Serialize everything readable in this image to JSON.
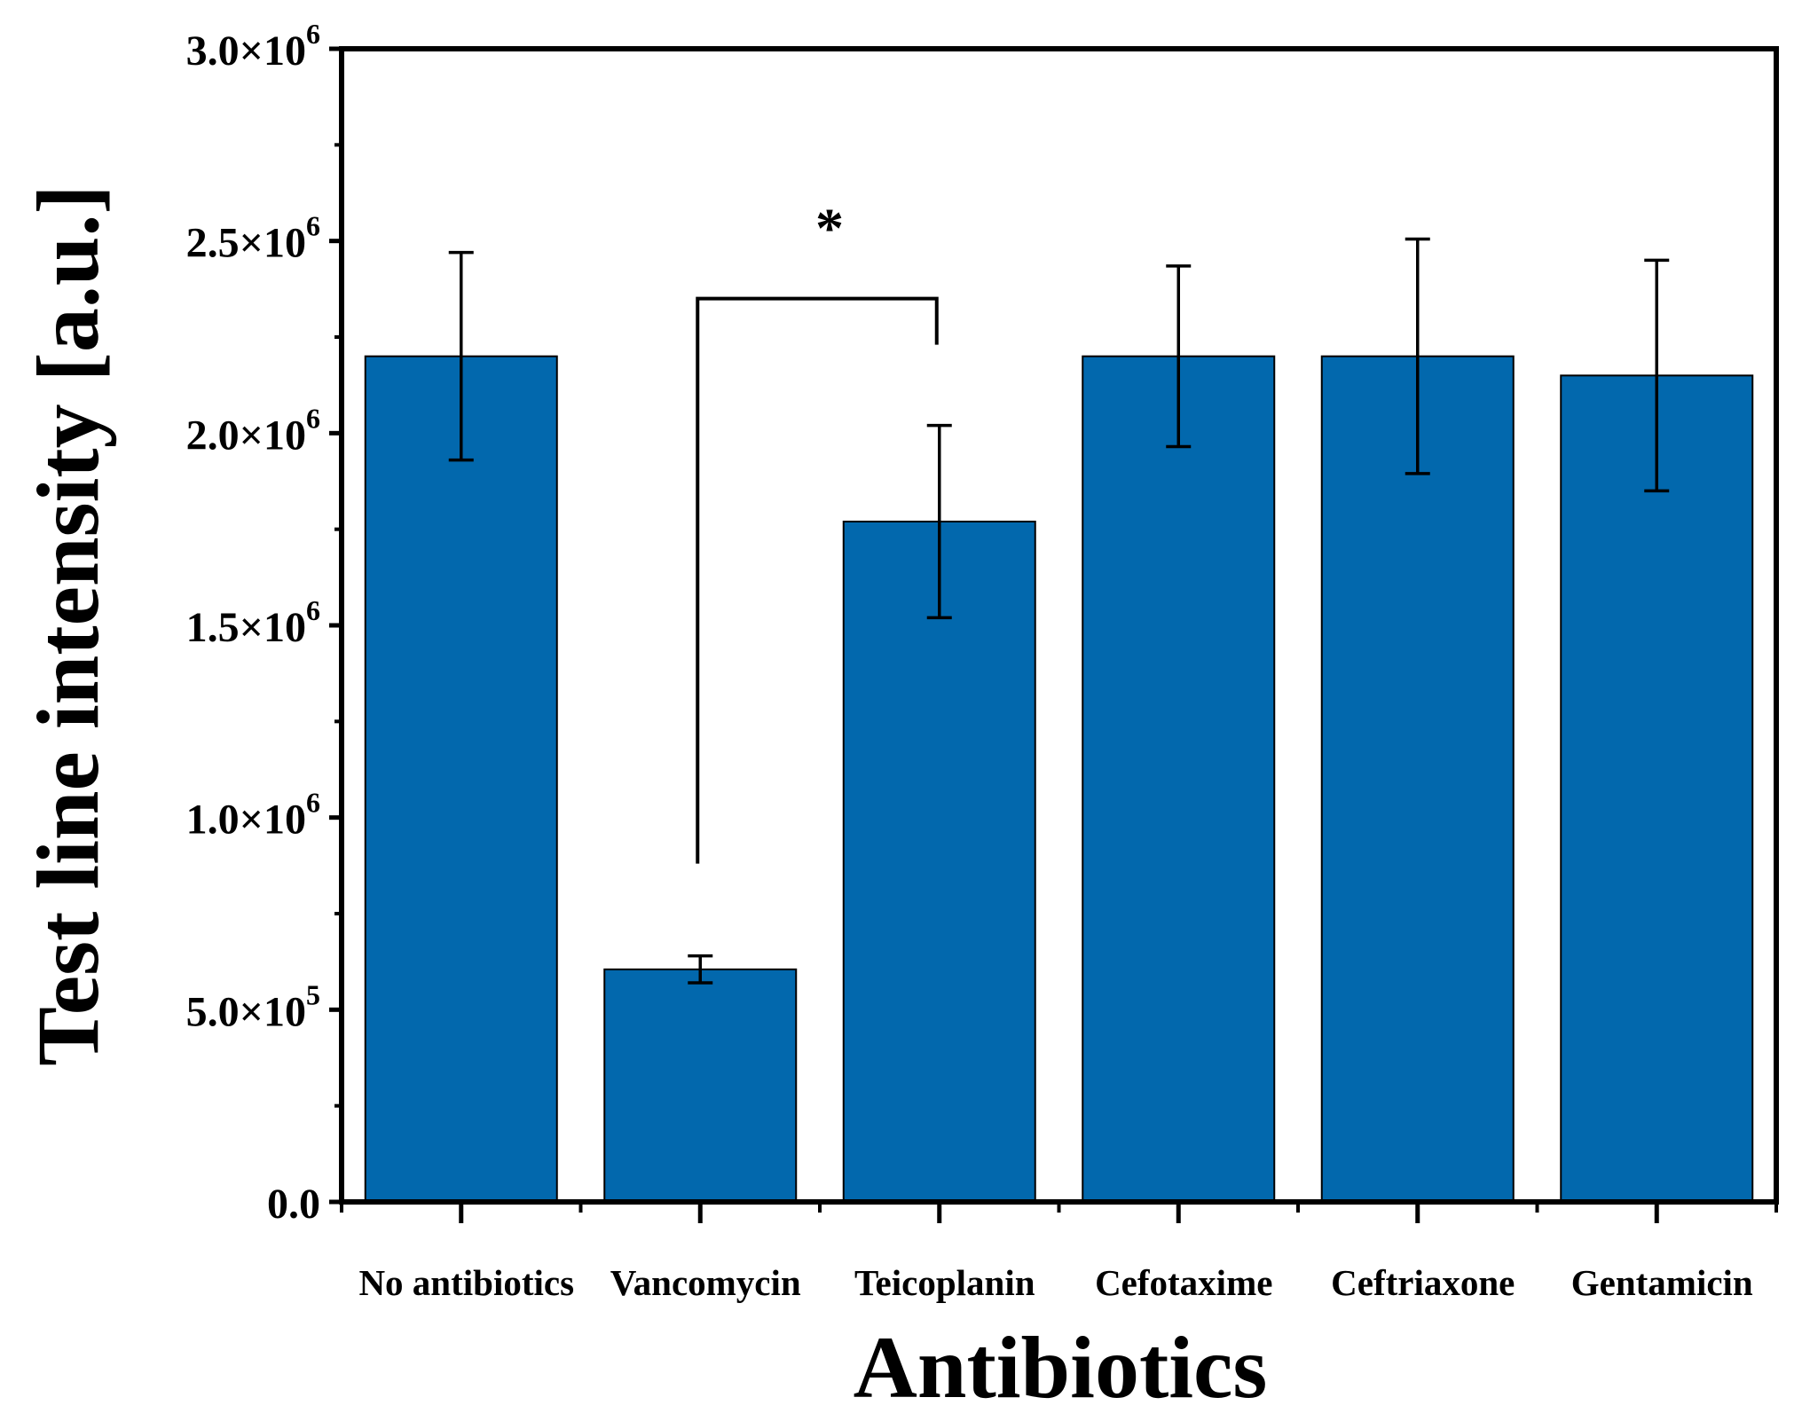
{
  "chart_data": {
    "type": "bar",
    "title": "",
    "xlabel": "Antibiotics",
    "ylabel": "Test line intensity [a.u.]",
    "ylim": [
      0,
      3000000
    ],
    "yticks": [
      {
        "value": 0,
        "mantissa": "0.0",
        "exponent": ""
      },
      {
        "value": 500000,
        "mantissa": "5.0×10",
        "exponent": "5"
      },
      {
        "value": 1000000,
        "mantissa": "1.0×10",
        "exponent": "6"
      },
      {
        "value": 1500000,
        "mantissa": "1.5×10",
        "exponent": "6"
      },
      {
        "value": 2000000,
        "mantissa": "2.0×10",
        "exponent": "6"
      },
      {
        "value": 2500000,
        "mantissa": "2.5×10",
        "exponent": "6"
      },
      {
        "value": 3000000,
        "mantissa": "3.0×10",
        "exponent": "6"
      }
    ],
    "categories": [
      "No antibiotics",
      "Vancomycin",
      "Teicoplanin",
      "Cefotaxime",
      "Ceftriaxone",
      "Gentamicin"
    ],
    "values": [
      2200000,
      605000,
      1770000,
      2200000,
      2200000,
      2150000
    ],
    "errors": [
      270000,
      35000,
      250000,
      235000,
      305000,
      300000
    ],
    "bar_color": "#0268ad",
    "grid": false,
    "significance": {
      "label": "*",
      "from_category": "Vancomycin",
      "to_category": "Teicoplanin",
      "bracket_top": 2350000,
      "left_bottom": 880000,
      "right_bottom": 2230000
    }
  }
}
